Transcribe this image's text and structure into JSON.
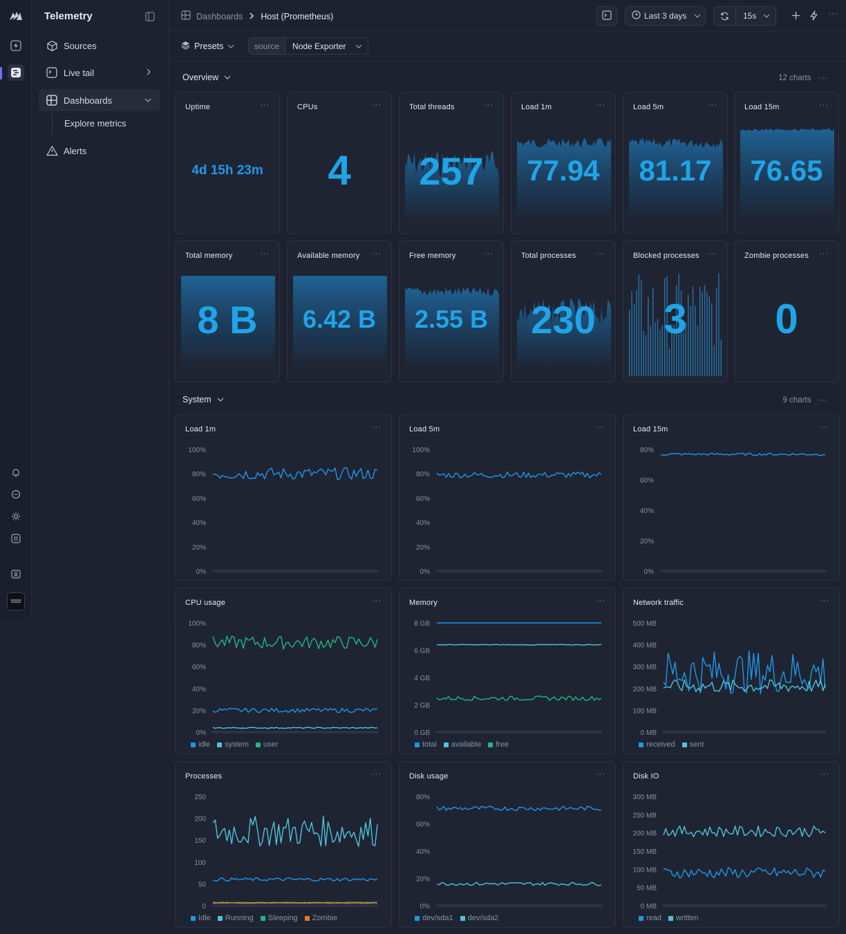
{
  "app": {
    "title": "Telemetry"
  },
  "sidebar": {
    "items": [
      {
        "label": "Sources"
      },
      {
        "label": "Live tail"
      },
      {
        "label": "Dashboards"
      },
      {
        "label": "Explore metrics"
      },
      {
        "label": "Alerts"
      }
    ]
  },
  "breadcrumb": {
    "root": "Dashboards",
    "current": "Host (Prometheus)"
  },
  "toolbar": {
    "time_range": "Last 3 days",
    "refresh": "15s"
  },
  "filters": {
    "presets_label": "Presets",
    "source_key": "source",
    "source_value": "Node Exporter"
  },
  "sections": {
    "overview": {
      "title": "Overview",
      "count": "12 charts"
    },
    "system": {
      "title": "System",
      "count": "9 charts"
    }
  },
  "stats": [
    {
      "title": "Uptime",
      "value": "4d 15h 23m",
      "spark": "none"
    },
    {
      "title": "CPUs",
      "value": "4",
      "spark": "none"
    },
    {
      "title": "Total threads",
      "value": "257",
      "spark": "spiky"
    },
    {
      "title": "Load 1m",
      "value": "77.94",
      "spark": "mid"
    },
    {
      "title": "Load 5m",
      "value": "81.17",
      "spark": "mid"
    },
    {
      "title": "Load 15m",
      "value": "76.65",
      "spark": "high"
    },
    {
      "title": "Total memory",
      "value": "8 B",
      "spark": "full"
    },
    {
      "title": "Available memory",
      "value": "6.42 B",
      "spark": "full"
    },
    {
      "title": "Free memory",
      "value": "2.55 B",
      "spark": "mid"
    },
    {
      "title": "Total processes",
      "value": "230",
      "spark": "spiky"
    },
    {
      "title": "Blocked processes",
      "value": "3",
      "spark": "bars"
    },
    {
      "title": "Zombie processes",
      "value": "0",
      "spark": "none"
    }
  ],
  "charts": [
    {
      "title": "Load 1m",
      "yticks": [
        "100%",
        "80%",
        "60%",
        "40%",
        "20%",
        "0%"
      ],
      "series": [
        {
          "color": "#2196e8",
          "level": 0.8,
          "amp": 0.05
        }
      ],
      "legend": []
    },
    {
      "title": "Load 5m",
      "yticks": [
        "100%",
        "80%",
        "60%",
        "40%",
        "20%",
        "0%"
      ],
      "series": [
        {
          "color": "#2196e8",
          "level": 0.79,
          "amp": 0.025
        }
      ],
      "legend": []
    },
    {
      "title": "Load 15m",
      "yticks": [
        "80%",
        "60%",
        "40%",
        "20%",
        "0%"
      ],
      "series": [
        {
          "color": "#2196e8",
          "level": 0.96,
          "amp": 0.01
        }
      ],
      "legend": []
    },
    {
      "title": "CPU usage",
      "yticks": [
        "100%",
        "80%",
        "60%",
        "40%",
        "20%",
        "0%"
      ],
      "series": [
        {
          "color": "#1fb884",
          "level": 0.82,
          "amp": 0.06
        },
        {
          "color": "#2196e8",
          "level": 0.2,
          "amp": 0.02
        },
        {
          "color": "#4fc3dd",
          "level": 0.02,
          "amp": 0.005
        }
      ],
      "legend": [
        {
          "label": "idle",
          "color": "#2196e8"
        },
        {
          "label": "system",
          "color": "#4fc3dd"
        },
        {
          "label": "user",
          "color": "#1fb884"
        }
      ]
    },
    {
      "title": "Memory",
      "yticks": [
        "8 GB",
        "6 GB",
        "4 GB",
        "2 GB",
        "0 GB"
      ],
      "series": [
        {
          "color": "#2196e8",
          "level": 1.0,
          "amp": 0
        },
        {
          "color": "#4fc3dd",
          "level": 0.8,
          "amp": 0.003
        },
        {
          "color": "#1fb884",
          "level": 0.31,
          "amp": 0.02
        }
      ],
      "legend": [
        {
          "label": "total",
          "color": "#2196e8"
        },
        {
          "label": "available",
          "color": "#4fc3dd"
        },
        {
          "label": "free",
          "color": "#1fb884"
        }
      ]
    },
    {
      "title": "Network traffic",
      "yticks": [
        "500 MB",
        "400 MB",
        "300 MB",
        "200 MB",
        "100 MB",
        "0 MB"
      ],
      "series": [
        {
          "color": "#2196e8",
          "level": 0.55,
          "amp": 0.2
        },
        {
          "color": "#4fc3dd",
          "level": 0.42,
          "amp": 0.06
        }
      ],
      "legend": [
        {
          "label": "received",
          "color": "#2196e8"
        },
        {
          "label": "sent",
          "color": "#4fc3dd"
        }
      ]
    },
    {
      "title": "Processes",
      "yticks": [
        "250",
        "200",
        "150",
        "100",
        "50",
        "0"
      ],
      "series": [
        {
          "color": "#4fc3dd",
          "level": 0.68,
          "amp": 0.14
        },
        {
          "color": "#2196e8",
          "level": 0.24,
          "amp": 0.015
        },
        {
          "color": "#1fb884",
          "level": 0.01,
          "amp": 0.002
        },
        {
          "color": "#e07b2c",
          "level": 0.005,
          "amp": 0.002
        }
      ],
      "legend": [
        {
          "label": "Idle",
          "color": "#2196e8"
        },
        {
          "label": "Running",
          "color": "#4fc3dd"
        },
        {
          "label": "Sleeping",
          "color": "#1fb884"
        },
        {
          "label": "Zombie",
          "color": "#e07b2c"
        }
      ]
    },
    {
      "title": "Disk usage",
      "yticks": [
        "80%",
        "60%",
        "40%",
        "20%",
        "0%"
      ],
      "series": [
        {
          "color": "#2196e8",
          "level": 0.89,
          "amp": 0.02
        },
        {
          "color": "#4fc3dd",
          "level": 0.2,
          "amp": 0.015
        }
      ],
      "legend": [
        {
          "label": "dev/sda1",
          "color": "#2196e8"
        },
        {
          "label": "dev/sda2",
          "color": "#4fc3dd"
        }
      ]
    },
    {
      "title": "Disk IO",
      "yticks": [
        "300 MB",
        "250 MB",
        "200 MB",
        "150 MB",
        "100 MB",
        "50 MB",
        "0 MB"
      ],
      "series": [
        {
          "color": "#4fc3dd",
          "level": 0.68,
          "amp": 0.05
        },
        {
          "color": "#2196e8",
          "level": 0.3,
          "amp": 0.05
        }
      ],
      "legend": [
        {
          "label": "read",
          "color": "#2196e8"
        },
        {
          "label": "written",
          "color": "#4fc3dd"
        }
      ]
    }
  ]
}
